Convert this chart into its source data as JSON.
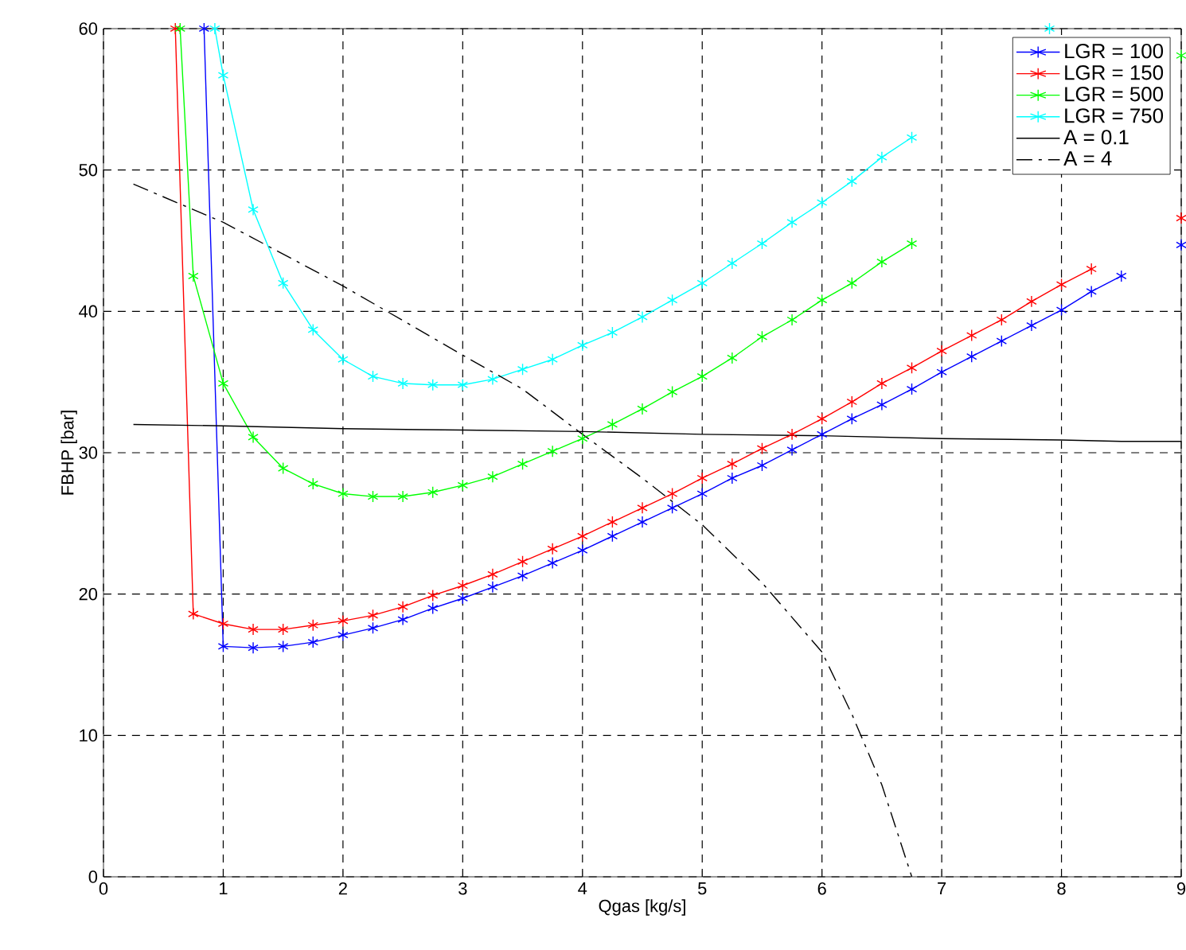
{
  "chart_data": {
    "type": "line",
    "xlabel": "Qgas [kg/s]",
    "ylabel": "FBHP [bar]",
    "xlim": [
      0,
      9
    ],
    "ylim": [
      0,
      60
    ],
    "xticks": [
      0,
      1,
      2,
      3,
      4,
      5,
      6,
      7,
      8,
      9
    ],
    "yticks": [
      0,
      10,
      20,
      30,
      40,
      50,
      60
    ],
    "grid": true,
    "legend": "top right",
    "series": [
      {
        "name": "LGR = 100",
        "color": "#0000ff",
        "marker": "cross",
        "line_style": "solid",
        "x": [
          0.84,
          1.0,
          1.25,
          1.5,
          1.75,
          2.0,
          2.25,
          2.5,
          2.75,
          3.0,
          3.25,
          3.5,
          3.75,
          4.0,
          4.25,
          4.5,
          4.75,
          5.0,
          5.25,
          5.5,
          5.75,
          6.0,
          6.25,
          6.5,
          6.75,
          7.0,
          7.25,
          7.5,
          7.75,
          8.0,
          8.25,
          8.5,
          8.75,
          9.0
        ],
        "values": [
          60,
          16.3,
          16.2,
          16.3,
          16.6,
          17.1,
          17.6,
          18.2,
          19.0,
          19.7,
          20.5,
          21.3,
          22.2,
          23.1,
          24.1,
          25.1,
          26.1,
          27.1,
          28.2,
          29.1,
          30.2,
          31.3,
          32.4,
          33.4,
          34.5,
          35.7,
          36.8,
          37.9,
          39.0,
          40.1,
          41.4,
          42.5,
          null,
          44.7
        ]
      },
      {
        "name": "LGR = 150",
        "color": "#ff0000",
        "marker": "cross",
        "line_style": "solid",
        "x": [
          0.6,
          0.75,
          1.0,
          1.25,
          1.5,
          1.75,
          2.0,
          2.25,
          2.5,
          2.75,
          3.0,
          3.25,
          3.5,
          3.75,
          4.0,
          4.25,
          4.5,
          4.75,
          5.0,
          5.25,
          5.5,
          5.75,
          6.0,
          6.25,
          6.5,
          6.75,
          7.0,
          7.25,
          7.5,
          7.75,
          8.0,
          8.25,
          8.5,
          8.75,
          9.0
        ],
        "values": [
          60,
          18.6,
          17.9,
          17.5,
          17.5,
          17.8,
          18.1,
          18.5,
          19.1,
          19.9,
          20.6,
          21.4,
          22.3,
          23.2,
          24.1,
          25.1,
          26.1,
          27.1,
          28.2,
          29.2,
          30.3,
          31.3,
          32.4,
          33.6,
          34.9,
          36.0,
          37.2,
          38.3,
          39.4,
          40.7,
          41.9,
          43.0,
          null,
          null,
          46.6
        ]
      },
      {
        "name": "LGR = 500",
        "color": "#00ff00",
        "marker": "cross",
        "line_style": "solid",
        "x": [
          0.64,
          0.75,
          1.0,
          1.25,
          1.5,
          1.75,
          2.0,
          2.25,
          2.5,
          2.75,
          3.0,
          3.25,
          3.5,
          3.75,
          4.0,
          4.25,
          4.5,
          4.75,
          5.0,
          5.25,
          5.5,
          5.75,
          6.0,
          6.25,
          6.5,
          6.75,
          7.0,
          7.25,
          7.5,
          7.75,
          8.0,
          8.25,
          8.5,
          8.75,
          9.0
        ],
        "values": [
          60,
          42.5,
          34.9,
          31.1,
          28.9,
          27.8,
          27.1,
          26.9,
          26.9,
          27.2,
          27.7,
          28.3,
          29.2,
          30.1,
          31.0,
          32.0,
          33.1,
          34.3,
          35.4,
          36.7,
          38.2,
          39.4,
          40.8,
          42.0,
          43.5,
          44.8,
          null,
          null,
          null,
          null,
          null,
          null,
          null,
          null,
          58.1
        ]
      },
      {
        "name": "LGR = 750",
        "color": "#00ffff",
        "marker": "cross",
        "line_style": "solid",
        "x": [
          0.93,
          1.0,
          1.25,
          1.5,
          1.75,
          2.0,
          2.25,
          2.5,
          2.75,
          3.0,
          3.25,
          3.5,
          3.75,
          4.0,
          4.25,
          4.5,
          4.75,
          5.0,
          5.25,
          5.5,
          5.75,
          6.0,
          6.25,
          6.5,
          6.75,
          7.0,
          7.9
        ],
        "values": [
          60,
          56.7,
          47.2,
          42.0,
          38.7,
          36.6,
          35.4,
          34.9,
          34.8,
          34.8,
          35.2,
          35.9,
          36.6,
          37.6,
          38.5,
          39.6,
          40.8,
          42.0,
          43.4,
          44.8,
          46.3,
          47.7,
          49.2,
          50.9,
          52.3,
          null,
          60
        ]
      },
      {
        "name": "A = 0.1",
        "color": "#000000",
        "marker": "none",
        "line_style": "solid",
        "x": [
          0.25,
          1,
          2,
          3,
          4,
          5,
          6,
          7,
          8,
          8.5,
          9
        ],
        "values": [
          32.0,
          31.9,
          31.7,
          31.6,
          31.5,
          31.3,
          31.2,
          31.0,
          30.9,
          30.8,
          30.8
        ]
      },
      {
        "name": "A = 4",
        "color": "#000000",
        "marker": "none",
        "line_style": "dashed",
        "x": [
          0.25,
          1,
          2,
          3,
          3.5,
          4,
          4.5,
          5,
          5.5,
          6,
          6.25,
          6.5,
          6.75
        ],
        "values": [
          49.0,
          46.3,
          41.8,
          36.9,
          34.5,
          31.3,
          28.2,
          24.9,
          20.8,
          15.9,
          11.5,
          6.5,
          0
        ]
      }
    ]
  }
}
